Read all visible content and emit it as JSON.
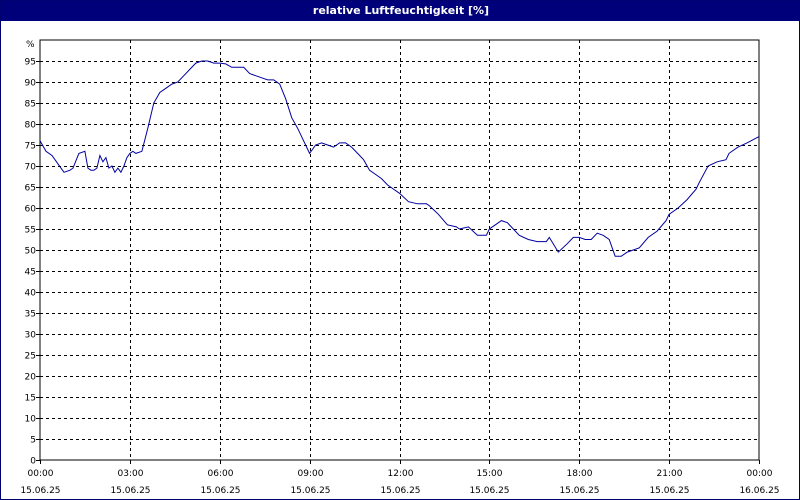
{
  "window": {
    "background": "#ffffff",
    "title_bar_color": "#00007a"
  },
  "chart_data": {
    "type": "line",
    "title": "relative Luftfeuchtigkeit [%]",
    "ylabel": "%",
    "xlabel": "",
    "ylim": [
      0,
      95
    ],
    "yticks": [
      0,
      5,
      10,
      15,
      20,
      25,
      30,
      35,
      40,
      45,
      50,
      55,
      60,
      65,
      70,
      75,
      80,
      85,
      90,
      95
    ],
    "xlim": [
      0,
      24
    ],
    "xticks": [
      {
        "hour": 0,
        "time": "00:00",
        "date": "15.06.25"
      },
      {
        "hour": 3,
        "time": "03:00",
        "date": "15.06.25"
      },
      {
        "hour": 6,
        "time": "06:00",
        "date": "15.06.25"
      },
      {
        "hour": 9,
        "time": "09:00",
        "date": "15.06.25"
      },
      {
        "hour": 12,
        "time": "12:00",
        "date": "15.06.25"
      },
      {
        "hour": 15,
        "time": "15:00",
        "date": "15.06.25"
      },
      {
        "hour": 18,
        "time": "18:00",
        "date": "15.06.25"
      },
      {
        "hour": 21,
        "time": "21:00",
        "date": "15.06.25"
      },
      {
        "hour": 24,
        "time": "00:00",
        "date": "16.06.25"
      }
    ],
    "grid": true,
    "line_color": "#0000a0",
    "series": [
      {
        "x": [
          0,
          0.2,
          0.4,
          0.6,
          0.8,
          1.0,
          1.1,
          1.3,
          1.5,
          1.6,
          1.7,
          1.8,
          1.9,
          2.0,
          2.1,
          2.2,
          2.3,
          2.4,
          2.5,
          2.6,
          2.7,
          2.8,
          2.9,
          3.0,
          3.1,
          3.2,
          3.4,
          3.6,
          3.8,
          4.0,
          4.2,
          4.4,
          4.6,
          4.8,
          5.0,
          5.2,
          5.4,
          5.6,
          5.8,
          6.0,
          6.2,
          6.4,
          6.6,
          6.8,
          7.0,
          7.2,
          7.4,
          7.6,
          7.8,
          8.0,
          8.2,
          8.4,
          8.6,
          8.8,
          9.0,
          9.2,
          9.4,
          9.6,
          9.8,
          10.0,
          10.2,
          10.4,
          10.6,
          10.8,
          11.0,
          11.2,
          11.4,
          11.6,
          11.8,
          12.0,
          12.3,
          12.6,
          12.9,
          13.0,
          13.3,
          13.6,
          13.9,
          14.0,
          14.3,
          14.6,
          14.9,
          15.0,
          15.2,
          15.4,
          15.6,
          15.8,
          16.0,
          16.3,
          16.6,
          16.9,
          17.0,
          17.3,
          17.6,
          17.8,
          18.0,
          18.2,
          18.4,
          18.6,
          18.8,
          19.0,
          19.2,
          19.4,
          19.6,
          19.8,
          20.0,
          20.3,
          20.6,
          20.9,
          21.0,
          21.3,
          21.6,
          21.9,
          22.0,
          22.3,
          22.6,
          22.9,
          23.0,
          23.3,
          23.6,
          24.0
        ],
        "y": [
          76,
          73.5,
          72.5,
          70.5,
          68.5,
          69,
          69.5,
          73,
          73.5,
          69.5,
          69,
          69,
          69.5,
          72.5,
          71,
          72,
          69.5,
          70,
          68.5,
          69.5,
          68.5,
          70,
          72,
          73,
          73.5,
          73,
          73.5,
          79,
          85,
          87.5,
          88.5,
          89.5,
          90,
          91.5,
          93,
          94.5,
          95,
          95,
          94.5,
          94.5,
          94.3,
          93.5,
          93.5,
          93.5,
          92,
          91.5,
          91,
          90.5,
          90.5,
          89.5,
          86,
          81.5,
          79,
          76,
          73,
          75,
          75.5,
          75,
          74.5,
          75.5,
          75.5,
          74.5,
          73,
          71.5,
          69,
          68,
          67,
          65.5,
          64.5,
          63.5,
          61.5,
          61,
          61,
          60.5,
          58.5,
          56,
          55.5,
          55,
          55.5,
          53.5,
          53.5,
          55,
          56,
          57,
          56.5,
          55,
          53.5,
          52.5,
          52,
          52,
          53,
          49.5,
          51.5,
          53,
          53,
          52.5,
          52.5,
          54,
          53.5,
          52.5,
          48.5,
          48.5,
          49.5,
          50,
          50.5,
          53,
          54.5,
          57,
          58.5,
          60,
          62,
          64.5,
          66,
          70,
          71,
          71.5,
          73,
          74.5,
          75.5,
          77
        ]
      }
    ]
  }
}
